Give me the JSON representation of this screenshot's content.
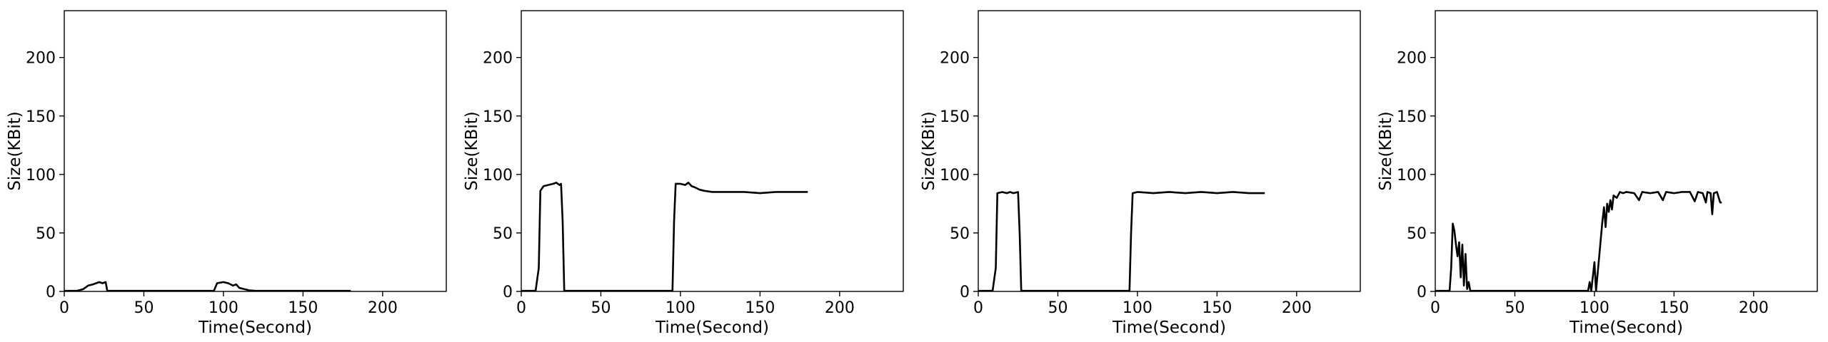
{
  "chart_data": [
    {
      "type": "line",
      "xlabel": "Time(Second)",
      "ylabel": "Size(KBit)",
      "xlim": [
        0,
        240
      ],
      "ylim": [
        0,
        240
      ],
      "xticks": [
        0,
        50,
        100,
        150,
        200
      ],
      "yticks": [
        0,
        50,
        100,
        150,
        200
      ],
      "grid": false,
      "series": [
        {
          "points": [
            [
              0,
              0.5
            ],
            [
              8,
              0.5
            ],
            [
              12,
              2
            ],
            [
              15,
              5
            ],
            [
              18,
              6
            ],
            [
              20,
              7
            ],
            [
              22,
              8
            ],
            [
              24,
              7
            ],
            [
              26,
              8
            ],
            [
              27,
              0.5
            ],
            [
              40,
              0.5
            ],
            [
              60,
              0.5
            ],
            [
              80,
              0.5
            ],
            [
              94,
              0.5
            ],
            [
              96,
              7
            ],
            [
              100,
              8
            ],
            [
              103,
              7
            ],
            [
              106,
              5
            ],
            [
              108,
              6
            ],
            [
              110,
              3
            ],
            [
              113,
              2
            ],
            [
              116,
              1
            ],
            [
              120,
              0.5
            ],
            [
              140,
              0.5
            ],
            [
              160,
              0.5
            ],
            [
              175,
              0.5
            ],
            [
              180,
              0.5
            ]
          ]
        }
      ]
    },
    {
      "type": "line",
      "xlabel": "Time(Second)",
      "ylabel": "Size(KBit)",
      "xlim": [
        0,
        240
      ],
      "ylim": [
        0,
        240
      ],
      "xticks": [
        0,
        50,
        100,
        150,
        200
      ],
      "yticks": [
        0,
        50,
        100,
        150,
        200
      ],
      "grid": false,
      "series": [
        {
          "points": [
            [
              0,
              0.5
            ],
            [
              9,
              0.5
            ],
            [
              11,
              20
            ],
            [
              12,
              86
            ],
            [
              14,
              90
            ],
            [
              17,
              91
            ],
            [
              20,
              92
            ],
            [
              22,
              93
            ],
            [
              24,
              91
            ],
            [
              25,
              92
            ],
            [
              26,
              60
            ],
            [
              27,
              0.5
            ],
            [
              40,
              0.5
            ],
            [
              60,
              0.5
            ],
            [
              80,
              0.5
            ],
            [
              95,
              0.5
            ],
            [
              96,
              60
            ],
            [
              97,
              92
            ],
            [
              100,
              92
            ],
            [
              103,
              91
            ],
            [
              105,
              93
            ],
            [
              107,
              90
            ],
            [
              109,
              89
            ],
            [
              112,
              87
            ],
            [
              115,
              86
            ],
            [
              120,
              85
            ],
            [
              130,
              85
            ],
            [
              140,
              85
            ],
            [
              150,
              84
            ],
            [
              160,
              85
            ],
            [
              170,
              85
            ],
            [
              180,
              85
            ]
          ]
        }
      ]
    },
    {
      "type": "line",
      "xlabel": "Time(Second)",
      "ylabel": "Size(KBit)",
      "xlim": [
        0,
        240
      ],
      "ylim": [
        0,
        240
      ],
      "xticks": [
        0,
        50,
        100,
        150,
        200
      ],
      "yticks": [
        0,
        50,
        100,
        150,
        200
      ],
      "grid": false,
      "series": [
        {
          "points": [
            [
              0,
              0.5
            ],
            [
              9,
              0.5
            ],
            [
              11,
              20
            ],
            [
              12,
              84
            ],
            [
              15,
              85
            ],
            [
              18,
              84
            ],
            [
              20,
              85
            ],
            [
              22,
              84
            ],
            [
              25,
              85
            ],
            [
              26,
              50
            ],
            [
              27,
              0.5
            ],
            [
              40,
              0.5
            ],
            [
              60,
              0.5
            ],
            [
              80,
              0.5
            ],
            [
              95,
              0.5
            ],
            [
              96,
              50
            ],
            [
              97,
              84
            ],
            [
              100,
              85
            ],
            [
              110,
              84
            ],
            [
              120,
              85
            ],
            [
              130,
              84
            ],
            [
              140,
              85
            ],
            [
              150,
              84
            ],
            [
              160,
              85
            ],
            [
              170,
              84
            ],
            [
              180,
              84
            ]
          ]
        }
      ]
    },
    {
      "type": "line",
      "xlabel": "Time(Second)",
      "ylabel": "Size(KBit)",
      "xlim": [
        0,
        240
      ],
      "ylim": [
        0,
        240
      ],
      "xticks": [
        0,
        50,
        100,
        150,
        200
      ],
      "yticks": [
        0,
        50,
        100,
        150,
        200
      ],
      "grid": false,
      "series": [
        {
          "points": [
            [
              0,
              0.5
            ],
            [
              9,
              0.5
            ],
            [
              10,
              20
            ],
            [
              11,
              58
            ],
            [
              12,
              52
            ],
            [
              13,
              40
            ],
            [
              14,
              30
            ],
            [
              15,
              42
            ],
            [
              16,
              12
            ],
            [
              17,
              40
            ],
            [
              18,
              5
            ],
            [
              19,
              32
            ],
            [
              20,
              2
            ],
            [
              21,
              8
            ],
            [
              22,
              0.5
            ],
            [
              40,
              0.5
            ],
            [
              60,
              0.5
            ],
            [
              80,
              0.5
            ],
            [
              96,
              0.5
            ],
            [
              97,
              8
            ],
            [
              98,
              0.5
            ],
            [
              100,
              25
            ],
            [
              101,
              0.5
            ],
            [
              103,
              30
            ],
            [
              104,
              45
            ],
            [
              105,
              60
            ],
            [
              106,
              72
            ],
            [
              107,
              55
            ],
            [
              108,
              75
            ],
            [
              109,
              68
            ],
            [
              110,
              78
            ],
            [
              111,
              70
            ],
            [
              112,
              82
            ],
            [
              114,
              80
            ],
            [
              116,
              85
            ],
            [
              118,
              84
            ],
            [
              120,
              85
            ],
            [
              125,
              84
            ],
            [
              128,
              78
            ],
            [
              130,
              85
            ],
            [
              135,
              84
            ],
            [
              140,
              85
            ],
            [
              143,
              78
            ],
            [
              145,
              85
            ],
            [
              150,
              84
            ],
            [
              155,
              85
            ],
            [
              160,
              85
            ],
            [
              163,
              77
            ],
            [
              165,
              85
            ],
            [
              168,
              84
            ],
            [
              170,
              76
            ],
            [
              171,
              85
            ],
            [
              173,
              84
            ],
            [
              174,
              66
            ],
            [
              175,
              84
            ],
            [
              177,
              85
            ],
            [
              179,
              76
            ],
            [
              180,
              76
            ]
          ]
        }
      ]
    }
  ]
}
